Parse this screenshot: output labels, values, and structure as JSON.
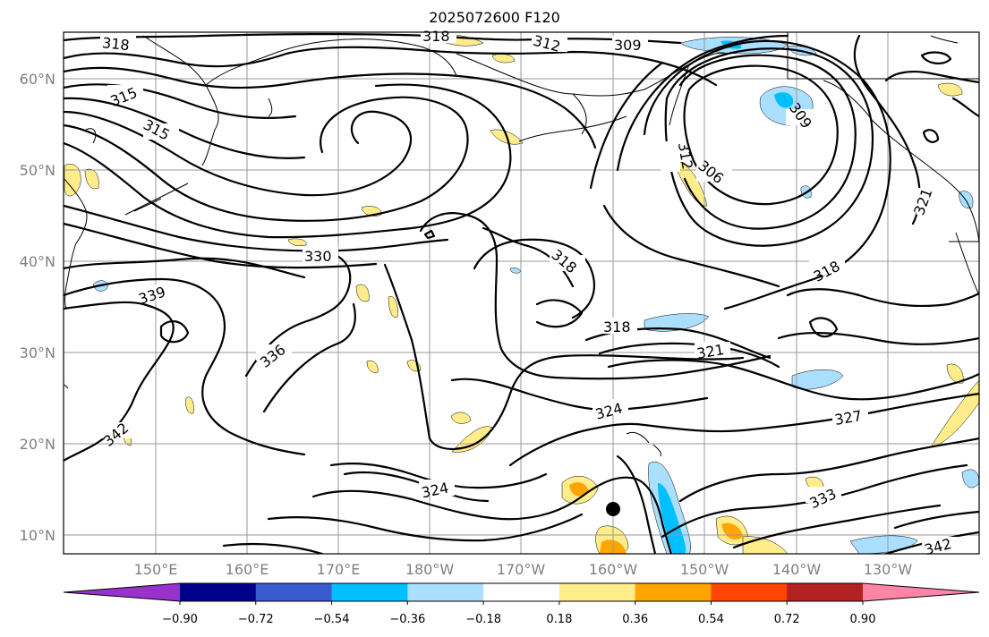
{
  "title": "2025072600 F120",
  "lat_labels": [
    "60°N",
    "50°N",
    "40°N",
    "30°N",
    "20°N",
    "10°N"
  ],
  "lon_labels": [
    "150°E",
    "160°E",
    "170°E",
    "180°W",
    "170°W",
    "160°W",
    "150°W",
    "140°W",
    "130°W"
  ],
  "contour_labels": [
    "318",
    "315",
    "312",
    "309",
    "318",
    "315",
    "318",
    "330",
    "339",
    "336",
    "342",
    "318",
    "318",
    "321",
    "324",
    "324",
    "327",
    "333",
    "342",
    "312",
    "306",
    "309",
    "318",
    "321"
  ],
  "colorbar": {
    "tick_labels": [
      "−0.90",
      "−0.72",
      "−0.54",
      "−0.36",
      "−0.18",
      "0.18",
      "0.36",
      "0.54",
      "0.72",
      "0.90"
    ],
    "colors": [
      "#9932cc",
      "#00008b",
      "#3a5bd0",
      "#00bfff",
      "#aadfff",
      "#ffffff",
      "#ffec8b",
      "#ffa500",
      "#ff4500",
      "#b22222",
      "#ff85a8"
    ]
  },
  "grid": true
}
